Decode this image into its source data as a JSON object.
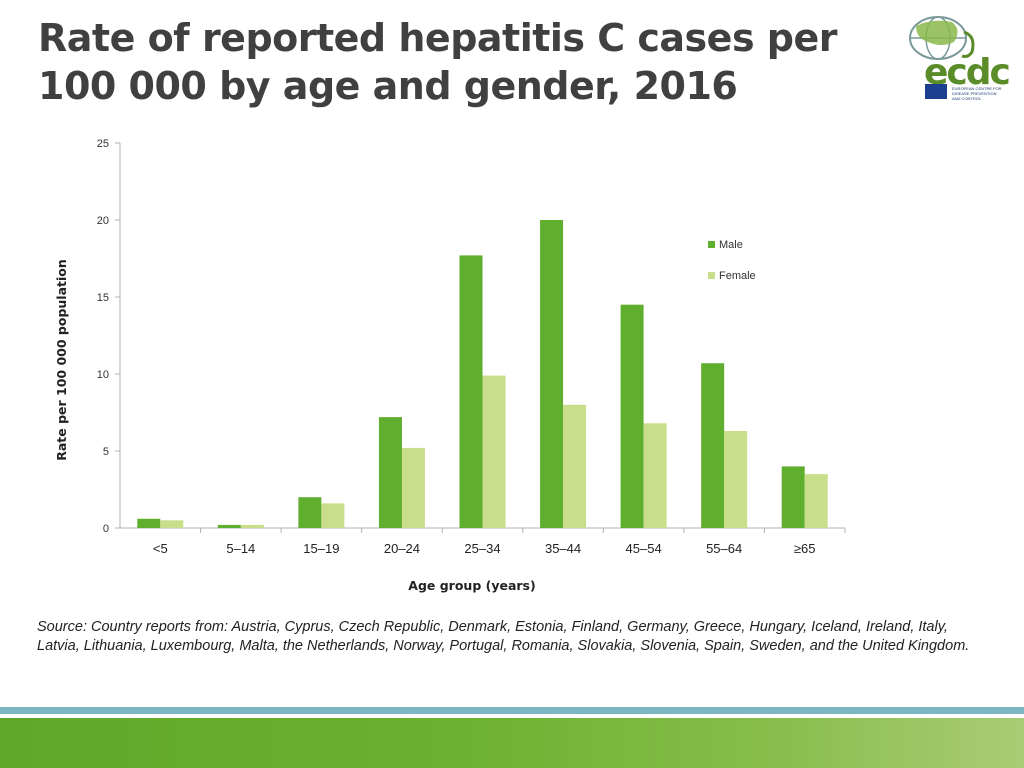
{
  "header": {
    "title_line1": "Rate of reported hepatitis C cases per",
    "title_line2": "100 000 by age and gender, 2016"
  },
  "logo": {
    "text": "ecdc",
    "subtitle": "EUROPEAN CENTRE FOR DISEASE PREVENTION AND CONTROL"
  },
  "source": "Source: Country reports from: Austria, Cyprus, Czech Republic, Denmark, Estonia, Finland, Germany, Greece, Hungary, Iceland, Ireland, Italy, Latvia, Lithuania, Luxembourg, Malta, the Netherlands, Norway, Portugal, Romania, Slovakia, Slovenia, Spain, Sweden, and the United Kingdom.",
  "colors": {
    "male": "#5fae2e",
    "female": "#c9de8b",
    "axis": "#b0b0b0"
  },
  "chart_data": {
    "type": "bar",
    "categories": [
      "<5",
      "5–14",
      "15–19",
      "20–24",
      "25–34",
      "35–44",
      "45–54",
      "55–64",
      "≥65"
    ],
    "series": [
      {
        "name": "Male",
        "values": [
          0.6,
          0.2,
          2.0,
          7.2,
          17.7,
          20.0,
          14.5,
          10.7,
          4.0
        ]
      },
      {
        "name": "Female",
        "values": [
          0.5,
          0.2,
          1.6,
          5.2,
          9.9,
          8.0,
          6.8,
          6.3,
          3.5
        ]
      }
    ],
    "xlabel": "Age group (years)",
    "ylabel": "Rate per 100 000 population",
    "ylim": [
      0,
      25
    ],
    "yticks": [
      0,
      5,
      10,
      15,
      20,
      25
    ],
    "legend_position": "right",
    "grid": false
  }
}
